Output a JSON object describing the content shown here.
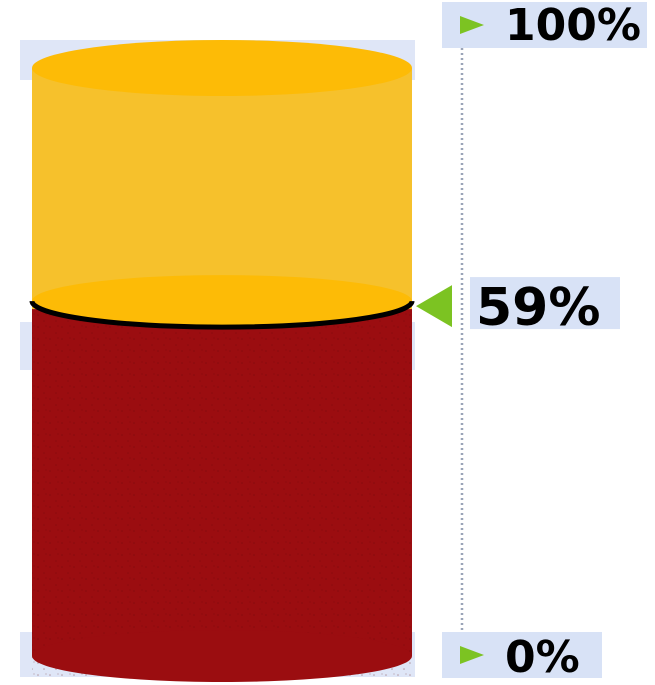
{
  "chart_data": {
    "type": "bar",
    "title": "",
    "value": 59,
    "unit": "%",
    "ylim": [
      0,
      100
    ],
    "labels": {
      "top": "100%",
      "current": "59%",
      "bottom": "0%"
    },
    "colors": {
      "filled": "#9b0d10",
      "empty": "#f6c12c",
      "empty_top": "#fdbb06",
      "level_line": "#000000",
      "marker": "#7cc322",
      "label_bg": "#d8e2f6"
    }
  }
}
